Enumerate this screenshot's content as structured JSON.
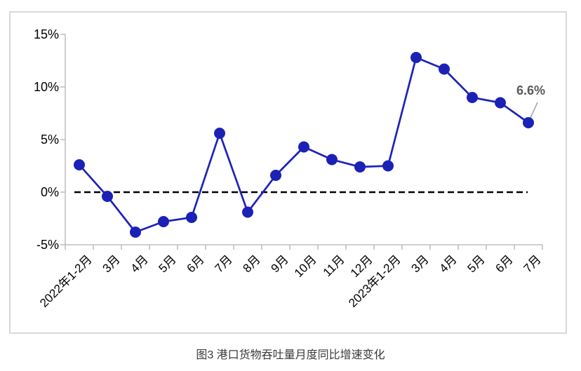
{
  "caption": "图3 港口货物吞吐量月度同比增速变化",
  "chart_data": {
    "type": "line",
    "title": "港口货物吞吐量月度同比增速变化",
    "categories": [
      "2022年1-2月",
      "3月",
      "4月",
      "5月",
      "6月",
      "7月",
      "8月",
      "9月",
      "10月",
      "11月",
      "12月",
      "2023年1-2月",
      "3月",
      "4月",
      "5月",
      "6月",
      "7月"
    ],
    "values": [
      2.6,
      -0.4,
      -3.8,
      -2.8,
      -2.4,
      5.6,
      -1.9,
      1.6,
      4.3,
      3.1,
      2.4,
      2.5,
      12.8,
      11.7,
      9.0,
      8.5,
      6.6
    ],
    "unit": "%",
    "ylim": [
      -5,
      15
    ],
    "y_ticks": [
      {
        "label": "15%",
        "value": 15
      },
      {
        "label": "10%",
        "value": 10
      },
      {
        "label": "5%",
        "value": 5
      },
      {
        "label": "0%",
        "value": 0
      },
      {
        "label": "-5%",
        "value": -5
      }
    ],
    "zero_reference_line": {
      "value": 0,
      "style": "dashed",
      "color": "#000000"
    },
    "annotation": {
      "text": "6.6%",
      "target_index": 16
    },
    "legend": "none",
    "grid": false,
    "colors": {
      "series": "#1e23b8",
      "marker": "#1c21b6",
      "axis": "#bfbfbf",
      "annotation_text": "#595959",
      "leader_line": "#a6a6a6",
      "frame_border": "#d9d9d9"
    }
  }
}
